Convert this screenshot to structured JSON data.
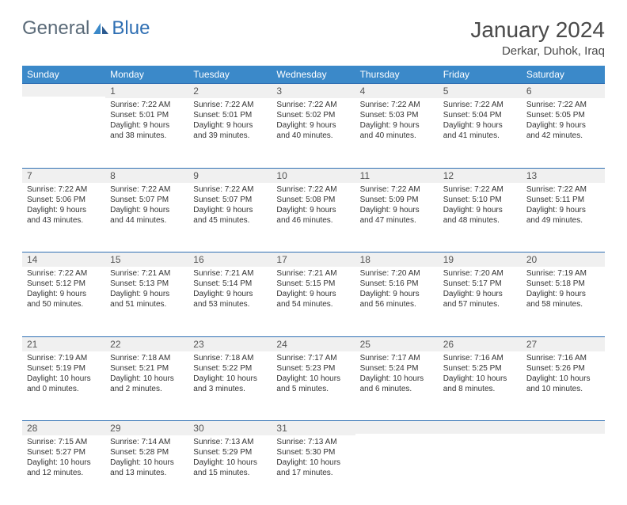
{
  "logo": {
    "text1": "General",
    "text2": "Blue"
  },
  "title": "January 2024",
  "location": "Derkar, Duhok, Iraq",
  "colors": {
    "header_bg": "#3b89c9",
    "divider": "#2f6fb3",
    "daynum_bg": "#f0f0f0",
    "text": "#333333",
    "title_text": "#4a4a4a"
  },
  "day_headers": [
    "Sunday",
    "Monday",
    "Tuesday",
    "Wednesday",
    "Thursday",
    "Friday",
    "Saturday"
  ],
  "weeks": [
    [
      null,
      {
        "n": "1",
        "sr": "7:22 AM",
        "ss": "5:01 PM",
        "dl": "9 hours and 38 minutes."
      },
      {
        "n": "2",
        "sr": "7:22 AM",
        "ss": "5:01 PM",
        "dl": "9 hours and 39 minutes."
      },
      {
        "n": "3",
        "sr": "7:22 AM",
        "ss": "5:02 PM",
        "dl": "9 hours and 40 minutes."
      },
      {
        "n": "4",
        "sr": "7:22 AM",
        "ss": "5:03 PM",
        "dl": "9 hours and 40 minutes."
      },
      {
        "n": "5",
        "sr": "7:22 AM",
        "ss": "5:04 PM",
        "dl": "9 hours and 41 minutes."
      },
      {
        "n": "6",
        "sr": "7:22 AM",
        "ss": "5:05 PM",
        "dl": "9 hours and 42 minutes."
      }
    ],
    [
      {
        "n": "7",
        "sr": "7:22 AM",
        "ss": "5:06 PM",
        "dl": "9 hours and 43 minutes."
      },
      {
        "n": "8",
        "sr": "7:22 AM",
        "ss": "5:07 PM",
        "dl": "9 hours and 44 minutes."
      },
      {
        "n": "9",
        "sr": "7:22 AM",
        "ss": "5:07 PM",
        "dl": "9 hours and 45 minutes."
      },
      {
        "n": "10",
        "sr": "7:22 AM",
        "ss": "5:08 PM",
        "dl": "9 hours and 46 minutes."
      },
      {
        "n": "11",
        "sr": "7:22 AM",
        "ss": "5:09 PM",
        "dl": "9 hours and 47 minutes."
      },
      {
        "n": "12",
        "sr": "7:22 AM",
        "ss": "5:10 PM",
        "dl": "9 hours and 48 minutes."
      },
      {
        "n": "13",
        "sr": "7:22 AM",
        "ss": "5:11 PM",
        "dl": "9 hours and 49 minutes."
      }
    ],
    [
      {
        "n": "14",
        "sr": "7:22 AM",
        "ss": "5:12 PM",
        "dl": "9 hours and 50 minutes."
      },
      {
        "n": "15",
        "sr": "7:21 AM",
        "ss": "5:13 PM",
        "dl": "9 hours and 51 minutes."
      },
      {
        "n": "16",
        "sr": "7:21 AM",
        "ss": "5:14 PM",
        "dl": "9 hours and 53 minutes."
      },
      {
        "n": "17",
        "sr": "7:21 AM",
        "ss": "5:15 PM",
        "dl": "9 hours and 54 minutes."
      },
      {
        "n": "18",
        "sr": "7:20 AM",
        "ss": "5:16 PM",
        "dl": "9 hours and 56 minutes."
      },
      {
        "n": "19",
        "sr": "7:20 AM",
        "ss": "5:17 PM",
        "dl": "9 hours and 57 minutes."
      },
      {
        "n": "20",
        "sr": "7:19 AM",
        "ss": "5:18 PM",
        "dl": "9 hours and 58 minutes."
      }
    ],
    [
      {
        "n": "21",
        "sr": "7:19 AM",
        "ss": "5:19 PM",
        "dl": "10 hours and 0 minutes."
      },
      {
        "n": "22",
        "sr": "7:18 AM",
        "ss": "5:21 PM",
        "dl": "10 hours and 2 minutes."
      },
      {
        "n": "23",
        "sr": "7:18 AM",
        "ss": "5:22 PM",
        "dl": "10 hours and 3 minutes."
      },
      {
        "n": "24",
        "sr": "7:17 AM",
        "ss": "5:23 PM",
        "dl": "10 hours and 5 minutes."
      },
      {
        "n": "25",
        "sr": "7:17 AM",
        "ss": "5:24 PM",
        "dl": "10 hours and 6 minutes."
      },
      {
        "n": "26",
        "sr": "7:16 AM",
        "ss": "5:25 PM",
        "dl": "10 hours and 8 minutes."
      },
      {
        "n": "27",
        "sr": "7:16 AM",
        "ss": "5:26 PM",
        "dl": "10 hours and 10 minutes."
      }
    ],
    [
      {
        "n": "28",
        "sr": "7:15 AM",
        "ss": "5:27 PM",
        "dl": "10 hours and 12 minutes."
      },
      {
        "n": "29",
        "sr": "7:14 AM",
        "ss": "5:28 PM",
        "dl": "10 hours and 13 minutes."
      },
      {
        "n": "30",
        "sr": "7:13 AM",
        "ss": "5:29 PM",
        "dl": "10 hours and 15 minutes."
      },
      {
        "n": "31",
        "sr": "7:13 AM",
        "ss": "5:30 PM",
        "dl": "10 hours and 17 minutes."
      },
      null,
      null,
      null
    ]
  ],
  "labels": {
    "sunrise": "Sunrise: ",
    "sunset": "Sunset: ",
    "daylight": "Daylight: "
  }
}
